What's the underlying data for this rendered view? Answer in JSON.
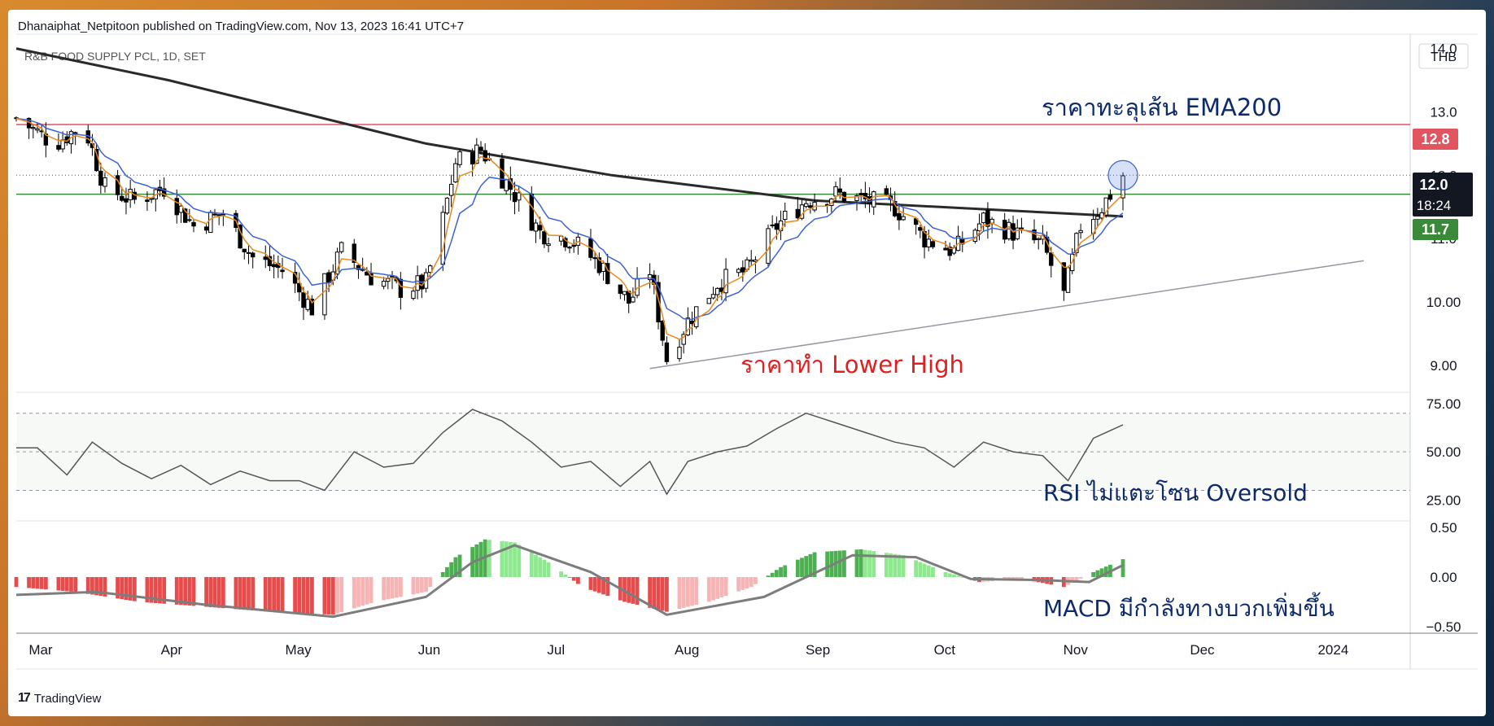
{
  "header": {
    "published": "Dhanaiphat_Netpitoon published on TradingView.com, Nov 13, 2023 16:41 UTC+7",
    "symbol": "R&B FOOD SUPPLY PCL, 1D, SET",
    "currency": "THB"
  },
  "footer": {
    "brand": "TradingView",
    "brand_mark": "17"
  },
  "annotations": {
    "ema_break": "ราคาทะลุเส้น EMA200",
    "lower_high": "ราคาทำ Lower High",
    "rsi_note": "RSI ไม่แตะโซน Oversold",
    "macd_note": "MACD มีกำลังทางบวกเพิ่มขึ้น"
  },
  "price_labels": {
    "resistance": "12.8",
    "last": "12.0",
    "countdown": "18:24",
    "support": "11.7"
  },
  "colors": {
    "up": "#ffffff",
    "down": "#000000",
    "ema200": "#2a2a2a",
    "ema_fast": "#e8891c",
    "ema_mid": "#3c63d6",
    "resistance": "#e05560",
    "support": "#3a8a3a",
    "macd_pos_strong": "#4caf50",
    "macd_pos_weak": "#8ee88e",
    "macd_neg_strong": "#e74c4c",
    "macd_neg_weak": "#f6b4b4",
    "annot_blue": "#0d2a6b",
    "annot_red": "#e02020"
  },
  "chart_data": [
    {
      "type": "candlestick",
      "title": "R&B FOOD SUPPLY PCL, 1D, SET",
      "x_range": [
        "2023-02-24",
        "2024-01-20"
      ],
      "x_ticks": [
        "Mar",
        "Apr",
        "May",
        "Jun",
        "Jul",
        "Aug",
        "Sep",
        "Oct",
        "Nov",
        "Dec",
        "2024"
      ],
      "y_ticks": [
        "9.00",
        "10.00",
        "11.0",
        "12.0",
        "13.0",
        "14.0"
      ],
      "ylim": [
        8.6,
        14.2
      ],
      "close_path": [
        [
          "2023-02-24",
          12.9
        ],
        [
          "2023-03-05",
          12.5
        ],
        [
          "2023-03-12",
          12.8
        ],
        [
          "2023-03-17",
          11.8
        ],
        [
          "2023-03-24",
          11.6
        ],
        [
          "2023-03-31",
          11.8
        ],
        [
          "2023-04-07",
          11.2
        ],
        [
          "2023-04-14",
          11.4
        ],
        [
          "2023-04-21",
          10.7
        ],
        [
          "2023-04-28",
          10.5
        ],
        [
          "2023-05-05",
          9.9
        ],
        [
          "2023-05-12",
          10.8
        ],
        [
          "2023-05-19",
          10.4
        ],
        [
          "2023-05-26",
          10.2
        ],
        [
          "2023-06-01",
          10.3
        ],
        [
          "2023-06-05",
          11.3
        ],
        [
          "2023-06-08",
          12.2
        ],
        [
          "2023-06-14",
          12.4
        ],
        [
          "2023-06-21",
          11.8
        ],
        [
          "2023-06-28",
          11.1
        ],
        [
          "2023-07-05",
          11.0
        ],
        [
          "2023-07-12",
          10.6
        ],
        [
          "2023-07-19",
          10.0
        ],
        [
          "2023-07-24",
          10.5
        ],
        [
          "2023-07-28",
          9.1
        ],
        [
          "2023-08-02",
          9.7
        ],
        [
          "2023-08-09",
          10.3
        ],
        [
          "2023-08-16",
          10.5
        ],
        [
          "2023-08-23",
          11.2
        ],
        [
          "2023-08-30",
          11.6
        ],
        [
          "2023-09-06",
          11.7
        ],
        [
          "2023-09-13",
          11.6
        ],
        [
          "2023-09-20",
          11.5
        ],
        [
          "2023-09-27",
          11.0
        ],
        [
          "2023-10-04",
          10.8
        ],
        [
          "2023-10-11",
          11.3
        ],
        [
          "2023-10-18",
          11.1
        ],
        [
          "2023-10-25",
          10.9
        ],
        [
          "2023-10-30",
          10.1
        ],
        [
          "2023-11-03",
          11.2
        ],
        [
          "2023-11-08",
          11.5
        ],
        [
          "2023-11-13",
          12.0
        ]
      ],
      "ema200": [
        [
          "2023-02-24",
          14.0
        ],
        [
          "2023-04-01",
          13.5
        ],
        [
          "2023-06-01",
          12.5
        ],
        [
          "2023-07-15",
          12.0
        ],
        [
          "2023-09-01",
          11.6
        ],
        [
          "2023-10-15",
          11.45
        ],
        [
          "2023-11-13",
          11.35
        ]
      ],
      "horizontal_lines": [
        {
          "label": "12.8",
          "value": 12.8
        },
        {
          "label": "11.7",
          "value": 11.7
        },
        {
          "label": "12.0",
          "value": 12.0
        }
      ],
      "trendline": [
        [
          "2023-07-24",
          8.95
        ],
        [
          "2024-01-09",
          10.65
        ]
      ]
    },
    {
      "type": "line",
      "title": "RSI",
      "y_ticks": [
        "75.00",
        "50.00",
        "25.00"
      ],
      "ylim": [
        15,
        80
      ],
      "bands": [
        70,
        50,
        30
      ],
      "values": [
        [
          "2023-02-24",
          52
        ],
        [
          "2023-03-01",
          52
        ],
        [
          "2023-03-08",
          38
        ],
        [
          "2023-03-14",
          55
        ],
        [
          "2023-03-21",
          44
        ],
        [
          "2023-03-28",
          36
        ],
        [
          "2023-04-04",
          43
        ],
        [
          "2023-04-11",
          33
        ],
        [
          "2023-04-18",
          40
        ],
        [
          "2023-04-25",
          35
        ],
        [
          "2023-05-02",
          35
        ],
        [
          "2023-05-08",
          30
        ],
        [
          "2023-05-15",
          50
        ],
        [
          "2023-05-22",
          42
        ],
        [
          "2023-05-29",
          44
        ],
        [
          "2023-06-05",
          60
        ],
        [
          "2023-06-12",
          72
        ],
        [
          "2023-06-19",
          66
        ],
        [
          "2023-06-26",
          55
        ],
        [
          "2023-07-03",
          42
        ],
        [
          "2023-07-10",
          45
        ],
        [
          "2023-07-17",
          32
        ],
        [
          "2023-07-24",
          45
        ],
        [
          "2023-07-28",
          28
        ],
        [
          "2023-08-02",
          45
        ],
        [
          "2023-08-09",
          50
        ],
        [
          "2023-08-16",
          53
        ],
        [
          "2023-08-23",
          62
        ],
        [
          "2023-08-30",
          70
        ],
        [
          "2023-09-06",
          65
        ],
        [
          "2023-09-13",
          60
        ],
        [
          "2023-09-20",
          55
        ],
        [
          "2023-09-27",
          52
        ],
        [
          "2023-10-04",
          42
        ],
        [
          "2023-10-11",
          55
        ],
        [
          "2023-10-18",
          50
        ],
        [
          "2023-10-25",
          48
        ],
        [
          "2023-10-31",
          35
        ],
        [
          "2023-11-06",
          57
        ],
        [
          "2023-11-13",
          64
        ]
      ]
    },
    {
      "type": "bar",
      "title": "MACD",
      "y_ticks": [
        "0.50",
        "0.00",
        "−0.50"
      ],
      "ylim": [
        -0.55,
        0.55
      ],
      "histogram": [
        [
          "2023-02-24",
          -0.1
        ],
        [
          "2023-03-10",
          -0.15
        ],
        [
          "2023-03-25",
          -0.25
        ],
        [
          "2023-04-10",
          -0.3
        ],
        [
          "2023-04-25",
          -0.35
        ],
        [
          "2023-05-10",
          -0.38
        ],
        [
          "2023-05-20",
          -0.25
        ],
        [
          "2023-06-01",
          -0.15
        ],
        [
          "2023-06-08",
          0.2
        ],
        [
          "2023-06-15",
          0.38
        ],
        [
          "2023-06-22",
          0.35
        ],
        [
          "2023-06-30",
          0.15
        ],
        [
          "2023-07-08",
          -0.1
        ],
        [
          "2023-07-18",
          -0.25
        ],
        [
          "2023-07-28",
          -0.35
        ],
        [
          "2023-08-07",
          -0.25
        ],
        [
          "2023-08-17",
          -0.1
        ],
        [
          "2023-08-24",
          0.1
        ],
        [
          "2023-09-01",
          0.25
        ],
        [
          "2023-09-12",
          0.28
        ],
        [
          "2023-09-22",
          0.22
        ],
        [
          "2023-10-02",
          0.05
        ],
        [
          "2023-10-10",
          -0.05
        ],
        [
          "2023-10-20",
          -0.02
        ],
        [
          "2023-10-30",
          -0.1
        ],
        [
          "2023-11-06",
          0.05
        ],
        [
          "2023-11-13",
          0.18
        ]
      ],
      "signal": [
        [
          "2023-02-24",
          -0.18
        ],
        [
          "2023-03-15",
          -0.15
        ],
        [
          "2023-04-10",
          -0.28
        ],
        [
          "2023-05-10",
          -0.4
        ],
        [
          "2023-06-01",
          -0.2
        ],
        [
          "2023-06-12",
          0.15
        ],
        [
          "2023-06-22",
          0.32
        ],
        [
          "2023-07-10",
          0.05
        ],
        [
          "2023-07-28",
          -0.38
        ],
        [
          "2023-08-20",
          -0.2
        ],
        [
          "2023-09-10",
          0.22
        ],
        [
          "2023-09-25",
          0.2
        ],
        [
          "2023-10-08",
          -0.02
        ],
        [
          "2023-10-25",
          -0.03
        ],
        [
          "2023-11-05",
          -0.05
        ],
        [
          "2023-11-13",
          0.12
        ]
      ]
    }
  ]
}
